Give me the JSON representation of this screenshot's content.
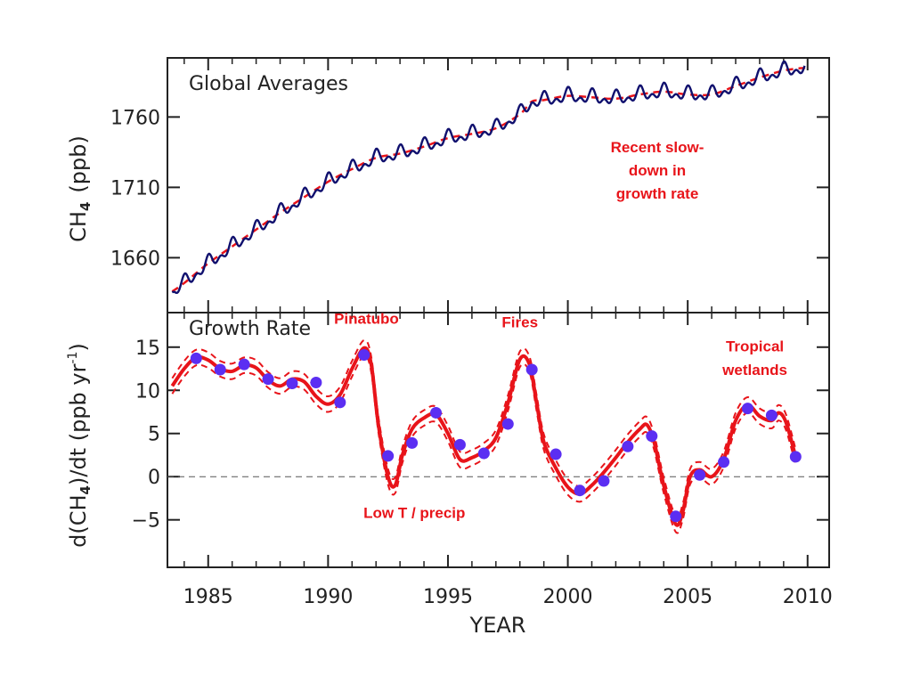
{
  "chart_data": [
    {
      "type": "line",
      "panel_title": "Global Averages",
      "ylabel_main": "CH",
      "ylabel_sub": "4",
      "ylabel_unit": "(ppb)",
      "xlabel": "YEAR",
      "xlim": [
        1983.3,
        2010.9
      ],
      "ylim": [
        1621,
        1802
      ],
      "yticks": [
        1660,
        1710,
        1760
      ],
      "annotation": [
        "Recent slow-",
        "down in",
        "growth rate"
      ],
      "series": [
        {
          "style": "monthly",
          "color": "#10106e",
          "seasonal_amplitude_ppb": 6.5,
          "x": [
            1983.5,
            1984,
            1985,
            1986,
            1987,
            1988,
            1989,
            1990,
            1991,
            1992,
            1993,
            1994,
            1995,
            1996,
            1997,
            1998,
            1998.5,
            1999,
            2000,
            2001,
            2002,
            2003,
            2004,
            2005,
            2006,
            2007,
            2008,
            2009,
            2009.9
          ],
          "values": [
            1636,
            1642,
            1656,
            1668,
            1680,
            1692,
            1703,
            1714,
            1723,
            1731,
            1734,
            1739,
            1745,
            1748,
            1752,
            1762,
            1771,
            1772,
            1775,
            1774,
            1773,
            1776,
            1778,
            1776,
            1776,
            1782,
            1788,
            1793,
            1795
          ]
        },
        {
          "style": "trend",
          "color": "#e8141a",
          "dashes": true,
          "x": [
            1983.5,
            1984,
            1985,
            1986,
            1987,
            1988,
            1989,
            1990,
            1991,
            1992,
            1993,
            1994,
            1995,
            1996,
            1997,
            1998,
            1998.5,
            1999,
            2000,
            2001,
            2002,
            2003,
            2004,
            2005,
            2006,
            2007,
            2008,
            2009,
            2009.9
          ],
          "values": [
            1636,
            1642,
            1656,
            1668,
            1680,
            1692,
            1703,
            1714,
            1723,
            1731,
            1734,
            1739,
            1745,
            1748,
            1752,
            1762,
            1771,
            1772,
            1775,
            1774,
            1773,
            1776,
            1778,
            1776,
            1776,
            1782,
            1788,
            1793,
            1795
          ]
        }
      ]
    },
    {
      "type": "line",
      "panel_title": "Growth Rate",
      "ylabel_main": "d(CH",
      "ylabel_sub": "4",
      "ylabel_mid": ")/dt  (ppb yr",
      "ylabel_sup": "-1",
      "ylabel_end": ")",
      "xlabel": "YEAR",
      "xlim": [
        1983.3,
        2010.9
      ],
      "ylim": [
        -10.5,
        19
      ],
      "yticks": [
        -5,
        0,
        5,
        10,
        15
      ],
      "ytick_labels": [
        "−5",
        "0",
        "5",
        "10",
        "15"
      ],
      "xticks": [
        1985,
        1990,
        1995,
        2000,
        2005,
        2010
      ],
      "zero_line": true,
      "annotations": [
        {
          "text": "Pinatubo",
          "x": 1991.6,
          "y": 17.7
        },
        {
          "text": "Fires",
          "x": 1998.0,
          "y": 17.3
        },
        {
          "text": "Tropical",
          "x": 2007.8,
          "y": 14.5
        },
        {
          "text": "wetlands",
          "x": 2007.8,
          "y": 11.8
        },
        {
          "text": "Low T / precip",
          "x": 1993.6,
          "y": -4.8
        }
      ],
      "uncertainty_band_ppb": 0.9,
      "series": [
        {
          "style": "growth_rate",
          "color": "#e8141a",
          "x": [
            1983.5,
            1984.0,
            1984.5,
            1985.0,
            1985.5,
            1986.0,
            1986.5,
            1987.0,
            1987.5,
            1988.0,
            1988.5,
            1989.0,
            1989.5,
            1990.0,
            1990.5,
            1991.0,
            1991.5,
            1991.8,
            1992.1,
            1992.5,
            1992.8,
            1993.1,
            1993.5,
            1994.0,
            1994.5,
            1995.0,
            1995.5,
            1996.0,
            1996.5,
            1997.0,
            1997.5,
            1998.0,
            1998.4,
            1998.7,
            1999.0,
            1999.5,
            2000.0,
            2000.5,
            2001.0,
            2001.5,
            2002.0,
            2002.5,
            2003.0,
            2003.3,
            2003.6,
            2004.0,
            2004.5,
            2004.8,
            2005.1,
            2005.5,
            2006.0,
            2006.5,
            2007.0,
            2007.5,
            2008.0,
            2008.5,
            2008.8,
            2009.1,
            2009.5
          ],
          "values": [
            10.5,
            12.5,
            13.8,
            13.5,
            12.5,
            12.2,
            12.9,
            12.6,
            11.2,
            10.5,
            11.3,
            11.0,
            9.3,
            8.4,
            9.5,
            12.5,
            14.9,
            13.0,
            6.0,
            0.0,
            -1.0,
            2.5,
            5.5,
            6.8,
            7.2,
            5.0,
            2.0,
            2.2,
            3.0,
            4.5,
            8.5,
            13.6,
            13.0,
            8.5,
            4.0,
            1.0,
            -1.2,
            -2.0,
            -1.0,
            0.5,
            2.2,
            4.0,
            5.5,
            6.0,
            4.0,
            -1.0,
            -5.5,
            -4.0,
            0.0,
            0.8,
            0.0,
            2.0,
            6.5,
            8.3,
            7.0,
            6.5,
            7.4,
            6.3,
            2.3
          ]
        },
        {
          "style": "annual_points",
          "color": "#5b2ef2",
          "x": [
            1984.5,
            1985.5,
            1986.5,
            1987.5,
            1988.5,
            1989.5,
            1990.5,
            1991.5,
            1992.5,
            1993.5,
            1994.5,
            1995.5,
            1996.5,
            1997.5,
            1998.5,
            1999.5,
            2000.5,
            2001.5,
            2002.5,
            2003.5,
            2004.5,
            2005.5,
            2006.5,
            2007.5,
            2008.5,
            2009.5
          ],
          "values": [
            13.7,
            12.4,
            13.0,
            11.3,
            10.8,
            10.9,
            8.6,
            14.1,
            2.4,
            3.9,
            7.4,
            3.7,
            2.7,
            6.1,
            12.4,
            2.6,
            -1.6,
            -0.5,
            3.5,
            4.7,
            -4.6,
            0.2,
            1.7,
            7.9,
            7.1,
            2.3
          ]
        }
      ]
    }
  ]
}
